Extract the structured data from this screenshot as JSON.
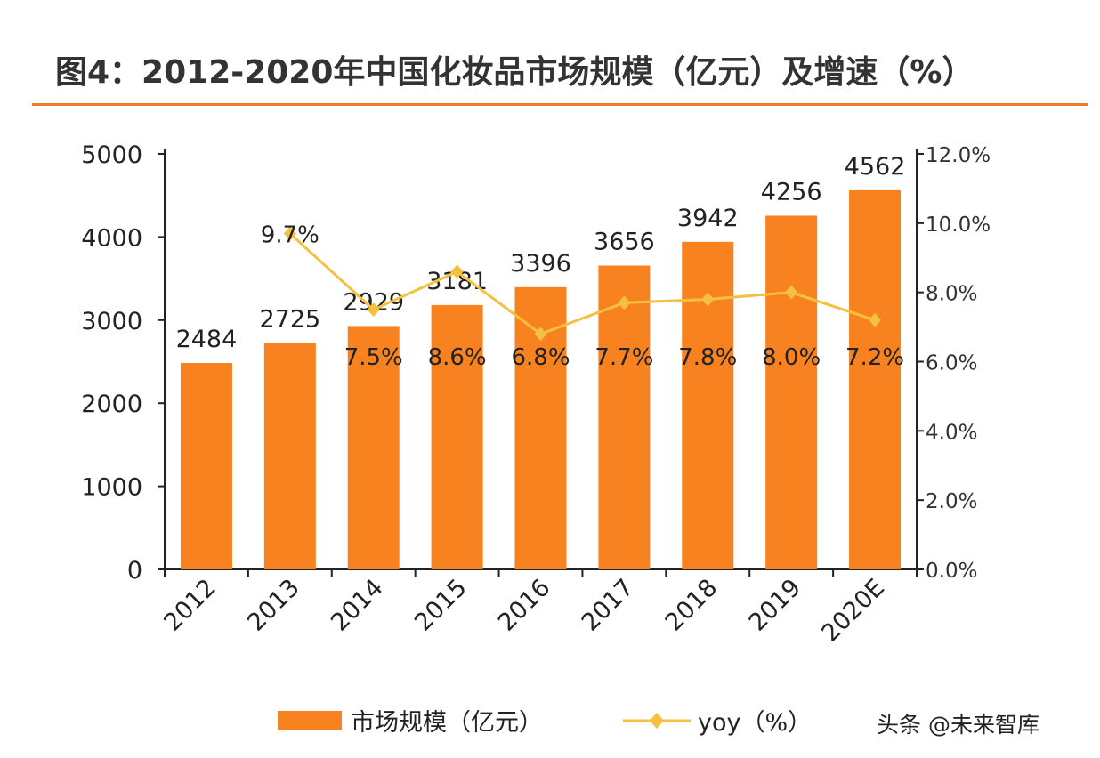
{
  "title": "图4：2012-2020年中国化妆品市场规模（亿元）及增速（%）",
  "watermark": "头条 @未来智库",
  "colors": {
    "bar": "#f7821f",
    "line": "#f5c040",
    "rule": "#f07c28"
  },
  "chart_data": {
    "type": "bar+line",
    "title": "图4：2012-2020年中国化妆品市场规模（亿元）及增速（%）",
    "categories": [
      "2012",
      "2013",
      "2014",
      "2015",
      "2016",
      "2017",
      "2018",
      "2019",
      "2020E"
    ],
    "series": [
      {
        "name": "市场规模（亿元）",
        "type": "bar",
        "axis": "left",
        "values": [
          2484,
          2725,
          2929,
          3181,
          3396,
          3656,
          3942,
          4256,
          4562
        ],
        "labels": [
          "2484",
          "2725",
          "2929",
          "3181",
          "3396",
          "3656",
          "3942",
          "4256",
          "4562"
        ]
      },
      {
        "name": "yoy（%）",
        "type": "line",
        "axis": "right",
        "values": [
          null,
          9.7,
          7.5,
          8.6,
          6.8,
          7.7,
          7.8,
          8.0,
          7.2
        ],
        "labels": [
          "",
          "9.7%",
          "7.5%",
          "8.6%",
          "6.8%",
          "7.7%",
          "7.8%",
          "8.0%",
          "7.2%"
        ]
      }
    ],
    "ylim_left": [
      0,
      5000
    ],
    "yticks_left": [
      "0",
      "1000",
      "2000",
      "3000",
      "4000",
      "5000"
    ],
    "ylim_right": [
      0,
      12
    ],
    "yticks_right": [
      "0.0%",
      "2.0%",
      "4.0%",
      "6.0%",
      "8.0%",
      "10.0%",
      "12.0%"
    ],
    "legend_position": "bottom",
    "grid": false
  }
}
